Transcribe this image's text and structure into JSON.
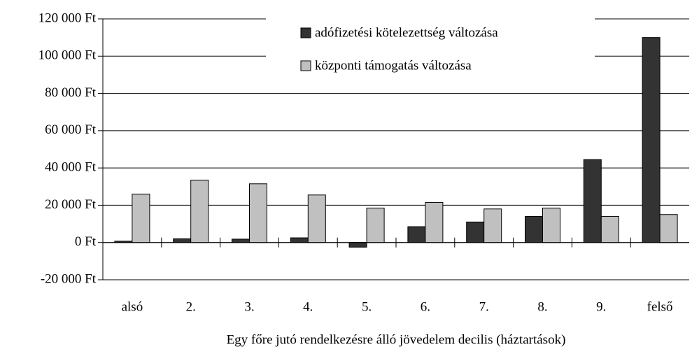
{
  "chart_data": {
    "type": "bar",
    "xlabel": "Egy főre jutó rendelkezésre álló jövedelem decilis (háztartások)",
    "categories": [
      "alsó",
      "2.",
      "3.",
      "4.",
      "5.",
      "6.",
      "7.",
      "8.",
      "9.",
      "felső"
    ],
    "series": [
      {
        "name": "adófizetési kötelezettség változása",
        "color": "#333333",
        "values": [
          700,
          2000,
          1800,
          2500,
          -2500,
          8500,
          11000,
          14000,
          44500,
          110000
        ]
      },
      {
        "name": "központi támogatás változása",
        "color": "#c0c0c0",
        "values": [
          26000,
          33500,
          31500,
          25500,
          18500,
          21500,
          18000,
          18500,
          14000,
          15000
        ]
      }
    ],
    "ylim": [
      -20000,
      120000
    ],
    "yticks": [
      {
        "value": -20000,
        "label": "-20 000 Ft"
      },
      {
        "value": 0,
        "label": "0 Ft"
      },
      {
        "value": 20000,
        "label": "20 000 Ft"
      },
      {
        "value": 40000,
        "label": "40 000 Ft"
      },
      {
        "value": 60000,
        "label": "60 000 Ft"
      },
      {
        "value": 80000,
        "label": "80 000 Ft"
      },
      {
        "value": 100000,
        "label": "100 000 Ft"
      },
      {
        "value": 120000,
        "label": "120 000 Ft"
      }
    ],
    "grid": true,
    "legend": "top"
  }
}
